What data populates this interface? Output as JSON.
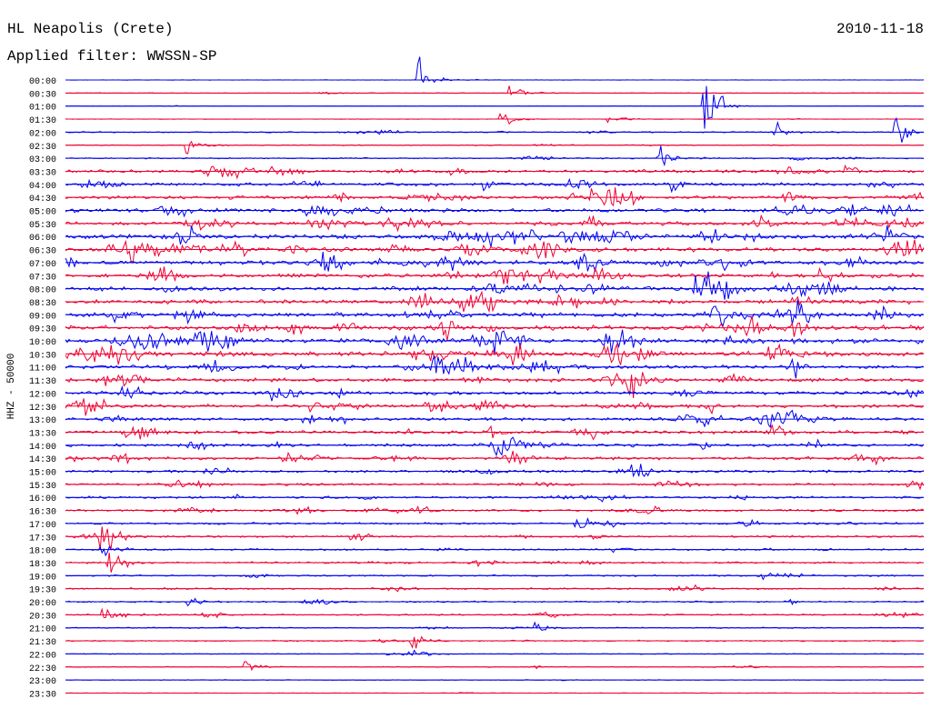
{
  "header": {
    "station": "HL Neapolis (Crete)",
    "date": "2010-11-18",
    "filter": "Applied filter: WWSSN-SP"
  },
  "colors": {
    "even_trace": "#0000ee",
    "odd_trace": "#ee0033",
    "background": "#ffffff",
    "text": "#000000"
  },
  "chart_data": {
    "type": "line",
    "channel_label": "HHZ - 50000",
    "row_labels": [
      "00:00",
      "00:30",
      "01:00",
      "01:30",
      "02:00",
      "02:30",
      "03:00",
      "03:30",
      "04:00",
      "04:30",
      "05:00",
      "05:30",
      "06:00",
      "06:30",
      "07:00",
      "07:30",
      "08:00",
      "08:30",
      "09:00",
      "09:30",
      "10:00",
      "10:30",
      "11:00",
      "11:30",
      "12:00",
      "12:30",
      "13:00",
      "13:30",
      "14:00",
      "14:30",
      "15:00",
      "15:30",
      "16:00",
      "16:30",
      "17:00",
      "17:30",
      "18:00",
      "18:30",
      "19:00",
      "19:30",
      "20:00",
      "20:30",
      "21:00",
      "21:30",
      "22:00",
      "22:30",
      "23:00",
      "23:30"
    ],
    "x_range_minutes": [
      0,
      30
    ],
    "noise_levels": [
      0.05,
      0.1,
      0.05,
      0.06,
      0.18,
      0.14,
      0.18,
      0.42,
      0.5,
      0.5,
      0.6,
      0.62,
      0.7,
      0.7,
      0.62,
      0.62,
      0.66,
      0.66,
      0.7,
      0.7,
      0.74,
      0.74,
      0.6,
      0.6,
      0.56,
      0.56,
      0.5,
      0.5,
      0.44,
      0.44,
      0.38,
      0.38,
      0.34,
      0.34,
      0.3,
      0.3,
      0.26,
      0.26,
      0.24,
      0.24,
      0.22,
      0.22,
      0.18,
      0.18,
      0.12,
      0.12,
      0.08,
      0.08
    ],
    "events": [
      {
        "row": 0,
        "minute": 12.3,
        "amplitude": 2.4
      },
      {
        "row": 1,
        "minute": 15.5,
        "amplitude": 1.2
      },
      {
        "row": 2,
        "minute": 22.3,
        "amplitude": 4.5
      },
      {
        "row": 3,
        "minute": 15.2,
        "amplitude": 1.0
      },
      {
        "row": 3,
        "minute": 19.0,
        "amplitude": 0.6
      },
      {
        "row": 4,
        "minute": 24.8,
        "amplitude": 1.2
      },
      {
        "row": 4,
        "minute": 29.0,
        "amplitude": 1.8
      },
      {
        "row": 5,
        "minute": 4.2,
        "amplitude": 0.9
      },
      {
        "row": 6,
        "minute": 20.7,
        "amplitude": 1.0
      },
      {
        "row": 16,
        "minute": 22.0,
        "amplitude": 1.4
      },
      {
        "row": 20,
        "minute": 15.0,
        "amplitude": 1.4
      },
      {
        "row": 28,
        "minute": 15.0,
        "amplitude": 1.2
      },
      {
        "row": 34,
        "minute": 17.8,
        "amplitude": 1.3
      },
      {
        "row": 35,
        "minute": 1.2,
        "amplitude": 3.0
      },
      {
        "row": 36,
        "minute": 1.2,
        "amplitude": 1.8
      },
      {
        "row": 37,
        "minute": 1.5,
        "amplitude": 1.4
      },
      {
        "row": 40,
        "minute": 4.2,
        "amplitude": 0.8
      },
      {
        "row": 41,
        "minute": 1.3,
        "amplitude": 1.2
      },
      {
        "row": 42,
        "minute": 16.4,
        "amplitude": 0.7
      },
      {
        "row": 43,
        "minute": 12.1,
        "amplitude": 1.0
      },
      {
        "row": 45,
        "minute": 6.3,
        "amplitude": 0.6
      }
    ]
  }
}
